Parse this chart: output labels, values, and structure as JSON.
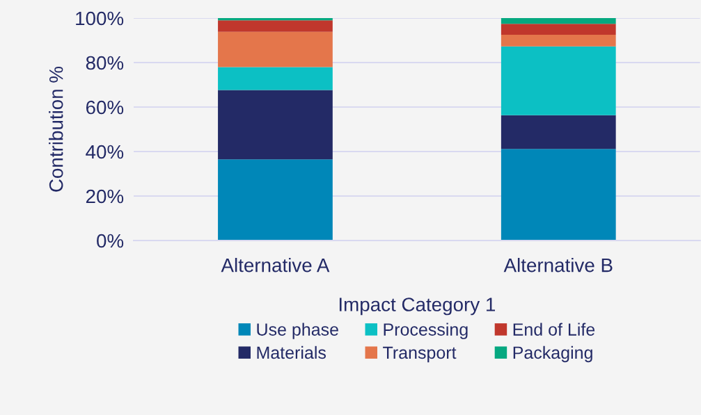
{
  "chart_data": {
    "type": "bar",
    "stacked": true,
    "xlabel": "Impact Category 1",
    "ylabel": "Contribution %",
    "categories": [
      "Alternative A",
      "Alternative B"
    ],
    "series": [
      {
        "name": "Use phase",
        "color": "#0087b8",
        "values": [
          36.5,
          41.2
        ]
      },
      {
        "name": "Materials",
        "color": "#232a66",
        "values": [
          31.2,
          15.1
        ]
      },
      {
        "name": "Processing",
        "color": "#0cc0c4",
        "values": [
          10.3,
          31.0
        ]
      },
      {
        "name": "Transport",
        "color": "#e4764b",
        "values": [
          15.8,
          5.2
        ]
      },
      {
        "name": "End of Life",
        "color": "#c0372c",
        "values": [
          5.2,
          4.9
        ]
      },
      {
        "name": "Packaging",
        "color": "#06a880",
        "values": [
          1.0,
          2.6
        ]
      }
    ],
    "ylim": [
      0,
      100
    ],
    "yticks": [
      {
        "value": 0,
        "label": "0%"
      },
      {
        "value": 20,
        "label": "20%"
      },
      {
        "value": 40,
        "label": "40%"
      },
      {
        "value": 60,
        "label": "60%"
      },
      {
        "value": 80,
        "label": "80%"
      },
      {
        "value": 100,
        "label": "100%"
      }
    ],
    "grid": "y",
    "legend": "bottom"
  }
}
